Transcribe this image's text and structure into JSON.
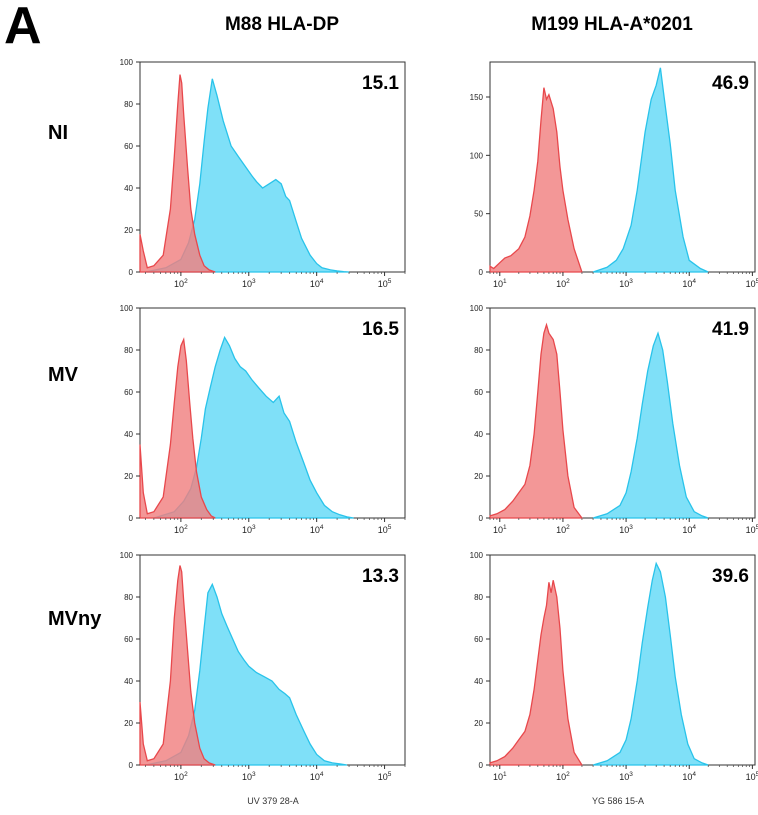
{
  "figure": {
    "panel_letter": "A",
    "columns": [
      "M88 HLA-DP",
      "M199 HLA-A*0201"
    ],
    "rows": [
      "NI",
      "MV",
      "MVny"
    ],
    "xlabels": [
      "UV 379 28-A",
      "YG 586 15-A"
    ]
  },
  "colors": {
    "control": "#f08080",
    "control_line": "#e8484c",
    "sample": "#7fe0f8",
    "sample_line": "#29c3ea",
    "overlap": "#b09aaa"
  },
  "chart_data": [
    {
      "type": "area",
      "row": "NI",
      "column": "M88 HLA-DP",
      "x_scale": "log",
      "x_range": [
        25,
        200000
      ],
      "ylim": [
        0,
        100
      ],
      "yticks": [
        0,
        20,
        40,
        60,
        80,
        100
      ],
      "xticks": [
        "10^2",
        "10^3",
        "10^4",
        "10^5"
      ],
      "annotation": "15.1",
      "series": [
        {
          "x": [
            25,
            28,
            32,
            40,
            55,
            70,
            80,
            90,
            97,
            103,
            110,
            125,
            140,
            160,
            190,
            220,
            260,
            320
          ],
          "values": [
            18,
            10,
            2,
            3,
            8,
            30,
            55,
            80,
            94,
            90,
            75,
            50,
            30,
            18,
            8,
            3,
            1,
            0
          ]
        },
        {
          "x": [
            30,
            60,
            100,
            130,
            160,
            190,
            220,
            250,
            290,
            340,
            420,
            550,
            700,
            900,
            1100,
            1300,
            1600,
            2000,
            2500,
            3000,
            3500,
            4000,
            5000,
            6000,
            8000,
            10000,
            12000,
            16000,
            20000,
            25000,
            30000
          ],
          "values": [
            0,
            2,
            6,
            14,
            25,
            42,
            62,
            78,
            92,
            84,
            72,
            60,
            55,
            50,
            46,
            43,
            40,
            42,
            44,
            42,
            36,
            34,
            24,
            16,
            8,
            4,
            2,
            1,
            0.5,
            0.2,
            0
          ]
        }
      ]
    },
    {
      "type": "area",
      "row": "NI",
      "column": "M199 HLA-A*0201",
      "x_scale": "log",
      "x_range": [
        7,
        110000
      ],
      "ylim": [
        0,
        180
      ],
      "yticks": [
        0,
        50,
        100,
        150
      ],
      "xticks": [
        "10^1",
        "10^2",
        "10^3",
        "10^4",
        "10^5"
      ],
      "annotation": "46.9",
      "series": [
        {
          "x": [
            7,
            8,
            10,
            12,
            15,
            20,
            25,
            30,
            35,
            40,
            45,
            50,
            55,
            60,
            70,
            80,
            90,
            100,
            120,
            150,
            200
          ],
          "values": [
            5,
            3,
            8,
            12,
            14,
            20,
            30,
            48,
            70,
            95,
            130,
            158,
            148,
            152,
            140,
            120,
            90,
            70,
            45,
            20,
            0
          ]
        },
        {
          "x": [
            300,
            500,
            700,
            900,
            1200,
            1500,
            2000,
            2500,
            3000,
            3500,
            4000,
            5000,
            6000,
            8000,
            10000,
            15000,
            20000
          ],
          "values": [
            0,
            4,
            10,
            20,
            40,
            70,
            120,
            148,
            160,
            175,
            150,
            110,
            70,
            30,
            10,
            3,
            0
          ]
        }
      ]
    },
    {
      "type": "area",
      "row": "MV",
      "column": "M88 HLA-DP",
      "x_scale": "log",
      "x_range": [
        25,
        200000
      ],
      "ylim": [
        0,
        100
      ],
      "yticks": [
        0,
        20,
        40,
        60,
        80,
        100
      ],
      "xticks": [
        "10^2",
        "10^3",
        "10^4",
        "10^5"
      ],
      "annotation": "16.5",
      "series": [
        {
          "x": [
            25,
            28,
            32,
            40,
            55,
            70,
            80,
            90,
            100,
            110,
            120,
            135,
            150,
            170,
            200,
            240,
            280,
            320
          ],
          "values": [
            35,
            12,
            2,
            3,
            10,
            35,
            55,
            72,
            82,
            85,
            75,
            55,
            38,
            22,
            10,
            4,
            1,
            0
          ]
        },
        {
          "x": [
            40,
            80,
            110,
            140,
            170,
            200,
            230,
            270,
            320,
            380,
            440,
            520,
            620,
            750,
            900,
            1100,
            1400,
            1800,
            2300,
            2800,
            3300,
            4000,
            5000,
            6500,
            8000,
            10000,
            13000,
            17000,
            22000,
            28000,
            35000
          ],
          "values": [
            0,
            3,
            8,
            14,
            24,
            38,
            52,
            62,
            72,
            80,
            86,
            82,
            76,
            72,
            70,
            66,
            62,
            58,
            55,
            58,
            50,
            46,
            36,
            26,
            18,
            12,
            6,
            3,
            1.5,
            0.5,
            0
          ]
        }
      ]
    },
    {
      "type": "area",
      "row": "MV",
      "column": "M199 HLA-A*0201",
      "x_scale": "log",
      "x_range": [
        7,
        110000
      ],
      "ylim": [
        0,
        100
      ],
      "yticks": [
        0,
        20,
        40,
        60,
        80,
        100
      ],
      "xticks": [
        "10^1",
        "10^2",
        "10^3",
        "10^4",
        "10^5"
      ],
      "annotation": "41.9",
      "series": [
        {
          "x": [
            7,
            9,
            12,
            16,
            20,
            25,
            30,
            35,
            40,
            45,
            50,
            55,
            60,
            70,
            80,
            90,
            100,
            120,
            150,
            200
          ],
          "values": [
            1,
            2,
            4,
            8,
            12,
            16,
            25,
            40,
            60,
            78,
            88,
            92,
            88,
            85,
            78,
            60,
            42,
            20,
            5,
            0
          ]
        },
        {
          "x": [
            300,
            500,
            800,
            1000,
            1200,
            1500,
            1800,
            2200,
            2700,
            3200,
            3800,
            4500,
            5500,
            7000,
            9000,
            12000,
            16000,
            20000
          ],
          "values": [
            0,
            2,
            6,
            12,
            22,
            38,
            54,
            70,
            82,
            88,
            80,
            65,
            45,
            25,
            10,
            3,
            1,
            0
          ]
        }
      ]
    },
    {
      "type": "area",
      "row": "MVny",
      "column": "M88 HLA-DP",
      "x_scale": "log",
      "x_range": [
        25,
        200000
      ],
      "ylim": [
        0,
        100
      ],
      "yticks": [
        0,
        20,
        40,
        60,
        80,
        100
      ],
      "xticks": [
        "10^2",
        "10^3",
        "10^4",
        "10^5"
      ],
      "annotation": "13.3",
      "series": [
        {
          "x": [
            25,
            28,
            32,
            40,
            55,
            70,
            80,
            90,
            97,
            103,
            110,
            125,
            140,
            160,
            190,
            220,
            260,
            320
          ],
          "values": [
            30,
            10,
            2,
            3,
            10,
            40,
            70,
            88,
            95,
            92,
            78,
            55,
            35,
            20,
            8,
            3,
            1,
            0
          ]
        },
        {
          "x": [
            30,
            60,
            100,
            130,
            160,
            190,
            220,
            250,
            290,
            340,
            400,
            480,
            580,
            700,
            850,
            1000,
            1300,
            1700,
            2200,
            2800,
            3400,
            4000,
            5000,
            6500,
            8000,
            10000,
            13000,
            17000,
            22000,
            28000
          ],
          "values": [
            0,
            2,
            6,
            14,
            26,
            45,
            65,
            82,
            86,
            80,
            72,
            66,
            60,
            54,
            50,
            47,
            44,
            42,
            40,
            36,
            34,
            32,
            24,
            16,
            10,
            5,
            2,
            1,
            0.5,
            0
          ]
        }
      ]
    },
    {
      "type": "area",
      "row": "MVny",
      "column": "M199 HLA-A*0201",
      "x_scale": "log",
      "x_range": [
        7,
        110000
      ],
      "ylim": [
        0,
        100
      ],
      "yticks": [
        0,
        20,
        40,
        60,
        80,
        100
      ],
      "xticks": [
        "10^1",
        "10^2",
        "10^3",
        "10^4",
        "10^5"
      ],
      "annotation": "39.6",
      "series": [
        {
          "x": [
            7,
            9,
            12,
            16,
            20,
            25,
            30,
            35,
            40,
            45,
            50,
            55,
            60,
            65,
            70,
            80,
            90,
            100,
            120,
            150,
            200
          ],
          "values": [
            1,
            2,
            4,
            8,
            12,
            16,
            24,
            36,
            50,
            62,
            70,
            76,
            87,
            82,
            88,
            80,
            65,
            45,
            22,
            6,
            0
          ]
        },
        {
          "x": [
            300,
            500,
            800,
            1000,
            1200,
            1500,
            1800,
            2200,
            2600,
            3000,
            3500,
            4200,
            5000,
            6000,
            7500,
            9500,
            12000,
            16000,
            20000
          ],
          "values": [
            0,
            2,
            6,
            12,
            22,
            40,
            58,
            75,
            88,
            96,
            92,
            80,
            62,
            42,
            24,
            10,
            3,
            1,
            0
          ]
        }
      ]
    }
  ]
}
